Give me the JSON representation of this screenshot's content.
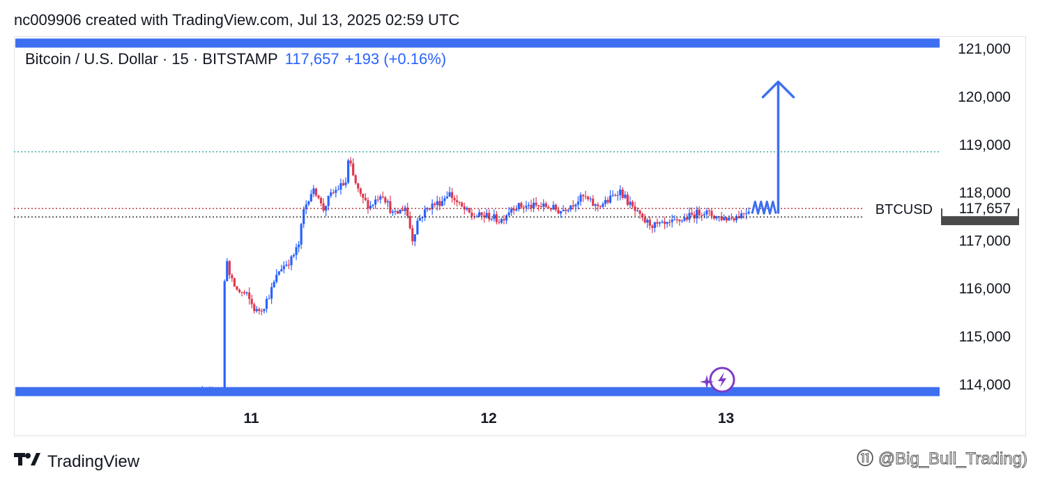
{
  "header": {
    "caption": "nc009906 created with TradingView.com, Jul 13, 2025 02:59 UTC"
  },
  "legend": {
    "symbol": "Bitcoin / U.S. Dollar · 15 · BITSTAMP",
    "price": "117,657",
    "change": "+193 (+0.16%)"
  },
  "footer": {
    "brand": "TradingView",
    "watermark": "⑪ @Big_Bull_Trading)"
  },
  "colors": {
    "up": "#2962ff",
    "down": "#e0394f",
    "accent": "#3d6ff0",
    "dotted_level": "#26a69a",
    "price_line": "#b22833",
    "badge": "#7e3ac4"
  },
  "chart_data": {
    "type": "candlestick",
    "title": "Bitcoin / U.S. Dollar · 15 · BITSTAMP",
    "y_axis": {
      "side": "right",
      "ticks": [
        121000,
        120000,
        119000,
        118000,
        117000,
        116000,
        115000,
        114000
      ],
      "tick_labels": [
        "121,000",
        "120,000",
        "119,000",
        "118,000",
        "117,000",
        "116,000",
        "115,000",
        "114,000"
      ],
      "range": [
        113750,
        121250
      ]
    },
    "x_axis": {
      "unit": "day (July 2025)",
      "ticks": [
        11,
        12,
        13
      ],
      "tick_labels": [
        "11",
        "12",
        "13"
      ],
      "range": [
        10.0,
        13.9
      ]
    },
    "price_label": {
      "symbol": "BTCUSD",
      "value": "117,657",
      "price": 117657
    },
    "hidden_price": 117484,
    "horizontal_levels": [
      {
        "name": "resistance zone",
        "price": 121100,
        "style": "solid-thick"
      },
      {
        "name": "resistance",
        "price": 118840,
        "style": "dotted"
      },
      {
        "name": "current price",
        "price": 117657,
        "style": "dotted"
      },
      {
        "name": "support",
        "price": 117480,
        "style": "dotted"
      },
      {
        "name": "support zone",
        "price": 113830,
        "style": "solid-thick"
      }
    ],
    "projection": {
      "zigzag_start": [
        13.11,
        117800
      ],
      "zigzag_end": [
        13.21,
        117550
      ],
      "arrow_from": [
        13.22,
        117550
      ],
      "arrow_to": [
        13.22,
        120300
      ]
    },
    "price_path": [
      [
        10.7,
        113800
      ],
      [
        10.85,
        113750
      ],
      [
        10.88,
        113800
      ],
      [
        10.89,
        116900
      ],
      [
        10.91,
        116200
      ],
      [
        10.94,
        115950
      ],
      [
        10.98,
        115850
      ],
      [
        11.02,
        115500
      ],
      [
        11.05,
        115600
      ],
      [
        11.08,
        115900
      ],
      [
        11.12,
        116400
      ],
      [
        11.17,
        116600
      ],
      [
        11.2,
        116900
      ],
      [
        11.22,
        117600
      ],
      [
        11.25,
        118000
      ],
      [
        11.28,
        118000
      ],
      [
        11.3,
        117600
      ],
      [
        11.33,
        117900
      ],
      [
        11.37,
        118100
      ],
      [
        11.4,
        118200
      ],
      [
        11.41,
        118700
      ],
      [
        11.43,
        118300
      ],
      [
        11.46,
        117900
      ],
      [
        11.5,
        117700
      ],
      [
        11.55,
        118000
      ],
      [
        11.6,
        117500
      ],
      [
        11.65,
        117700
      ],
      [
        11.68,
        117000
      ],
      [
        11.7,
        117400
      ],
      [
        11.75,
        117700
      ],
      [
        11.8,
        117800
      ],
      [
        11.83,
        118000
      ],
      [
        11.88,
        117700
      ],
      [
        11.93,
        117500
      ],
      [
        12.0,
        117500
      ],
      [
        12.05,
        117400
      ],
      [
        12.1,
        117700
      ],
      [
        12.18,
        117700
      ],
      [
        12.25,
        117700
      ],
      [
        12.3,
        117600
      ],
      [
        12.4,
        117900
      ],
      [
        12.45,
        117700
      ],
      [
        12.5,
        117800
      ],
      [
        12.55,
        118050
      ],
      [
        12.6,
        117700
      ],
      [
        12.65,
        117400
      ],
      [
        12.7,
        117300
      ],
      [
        12.75,
        117300
      ],
      [
        12.8,
        117400
      ],
      [
        12.85,
        117500
      ],
      [
        12.9,
        117600
      ],
      [
        12.95,
        117500
      ],
      [
        13.0,
        117450
      ],
      [
        13.05,
        117500
      ],
      [
        13.1,
        117650
      ]
    ]
  }
}
